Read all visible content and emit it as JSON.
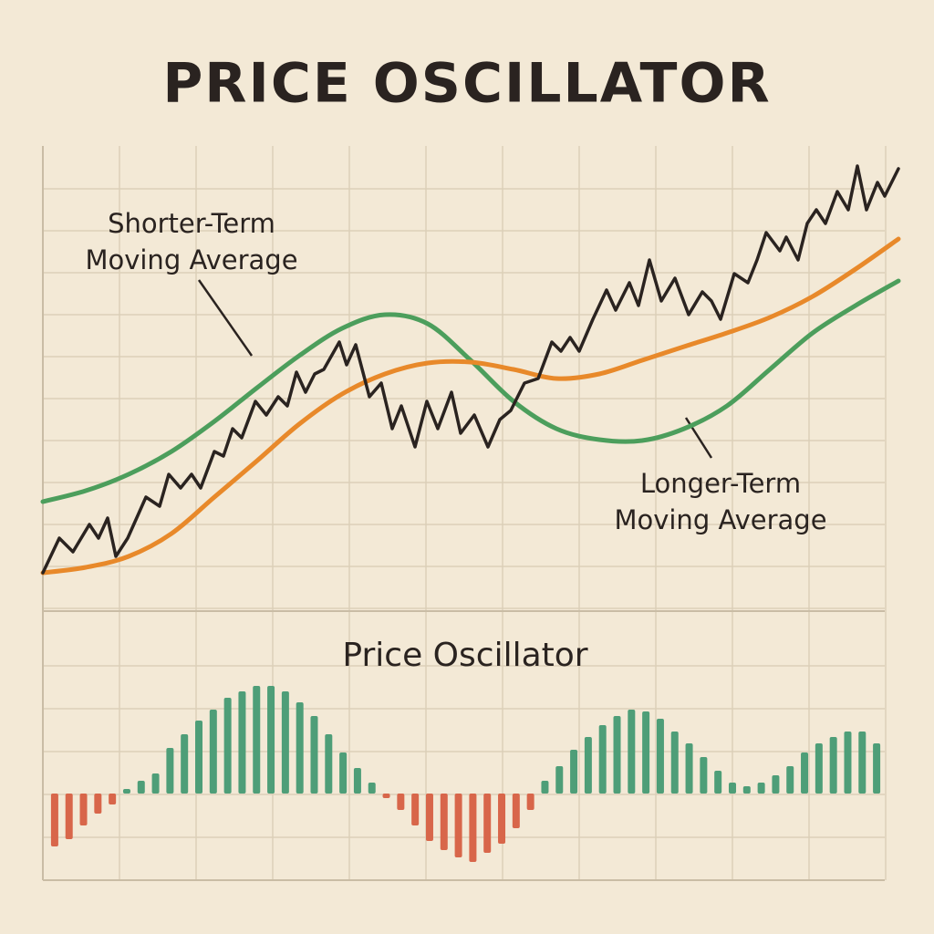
{
  "chart_data": [
    {
      "type": "line",
      "title": "PRICE OSCILLATOR",
      "annotations": [
        [
          "Shorter-Term",
          "Moving Average"
        ],
        [
          "Longer-Term",
          "Moving Average"
        ]
      ],
      "xlim": [
        0,
        938
      ],
      "ylim": [
        0,
        505
      ],
      "grid": true,
      "series": [
        {
          "color": "#4c9e5c",
          "smooth": true,
          "x": [
            0,
            47,
            94,
            141,
            188,
            235,
            281,
            328,
            375,
            422,
            469,
            516,
            563,
            610,
            657,
            703,
            750,
            797,
            844,
            891,
            938
          ],
          "values": [
            115,
            127,
            145,
            170,
            203,
            240,
            275,
            305,
            320,
            310,
            270,
            225,
            195,
            183,
            182,
            195,
            220,
            260,
            300,
            330,
            357
          ]
        },
        {
          "color": "#e8892a",
          "smooth": true,
          "x": [
            0,
            47,
            94,
            141,
            188,
            235,
            281,
            328,
            375,
            422,
            469,
            516,
            563,
            610,
            657,
            703,
            750,
            797,
            844,
            891,
            938
          ],
          "values": [
            37,
            43,
            55,
            80,
            120,
            160,
            200,
            233,
            255,
            267,
            268,
            260,
            250,
            255,
            270,
            285,
            300,
            317,
            340,
            370,
            403
          ]
        },
        {
          "color": "#2a2320",
          "smooth": false,
          "x": [
            0,
            18,
            33,
            51,
            61,
            71,
            80,
            93,
            113,
            128,
            138,
            151,
            163,
            173,
            188,
            198,
            208,
            218,
            233,
            245,
            258,
            268,
            278,
            288,
            298,
            308,
            325,
            333,
            343,
            358,
            371,
            383,
            393,
            408,
            421,
            433,
            448,
            458,
            473,
            488,
            501,
            513,
            528,
            543,
            558,
            568,
            578,
            588,
            603,
            618,
            628,
            643,
            653,
            665,
            678,
            693,
            708,
            723,
            733,
            743,
            758,
            773,
            783,
            793,
            808,
            815,
            828,
            838,
            848,
            858,
            871,
            883,
            893,
            903,
            915,
            923,
            938
          ],
          "values": [
            37,
            75,
            60,
            90,
            75,
            97,
            55,
            75,
            120,
            110,
            145,
            130,
            145,
            130,
            170,
            165,
            195,
            185,
            225,
            210,
            230,
            220,
            257,
            235,
            255,
            260,
            290,
            265,
            287,
            230,
            245,
            195,
            220,
            175,
            225,
            195,
            235,
            190,
            210,
            175,
            205,
            215,
            245,
            250,
            290,
            280,
            295,
            280,
            315,
            347,
            325,
            355,
            330,
            380,
            335,
            360,
            320,
            345,
            335,
            315,
            365,
            355,
            380,
            410,
            390,
            405,
            380,
            420,
            435,
            420,
            455,
            435,
            483,
            435,
            465,
            450,
            480
          ]
        }
      ]
    },
    {
      "type": "bar",
      "title": "Price Oscillator",
      "ylim": [
        -95,
        195
      ],
      "grid": true,
      "positive_color": "#4e9e78",
      "negative_color": "#d8664a",
      "values": [
        -58,
        -50,
        -35,
        -22,
        -12,
        5,
        14,
        22,
        50,
        65,
        80,
        92,
        105,
        112,
        118,
        118,
        112,
        100,
        85,
        65,
        45,
        28,
        12,
        -5,
        -18,
        -35,
        -52,
        -62,
        -70,
        -75,
        -65,
        -55,
        -38,
        -18,
        14,
        30,
        48,
        62,
        75,
        85,
        92,
        90,
        82,
        68,
        55,
        40,
        25,
        12,
        8,
        12,
        20,
        30,
        45,
        55,
        62,
        68,
        68,
        55
      ]
    }
  ]
}
